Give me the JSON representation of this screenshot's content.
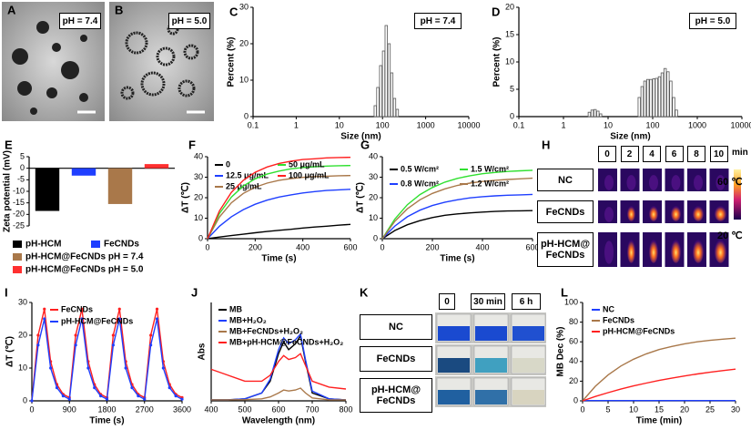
{
  "images": [
    {
      "panel": "A",
      "label": "pH = 7.4"
    },
    {
      "panel": "B",
      "label": "pH = 5.0"
    }
  ],
  "thermal": {
    "panel": "H",
    "times": [
      "0",
      "2",
      "4",
      "6",
      "8",
      "10"
    ],
    "unit": "min",
    "rows": [
      "NC",
      "FeCNDs",
      "pH-HCM@ FeCNDs"
    ],
    "scale_max": "60 ℃",
    "scale_min": "20 ℃"
  },
  "vials": {
    "panel": "K",
    "times": [
      "0",
      "30 min",
      "6 h"
    ],
    "rows": [
      "NC",
      "FeCNDs",
      "pH-HCM@ FeCNDs"
    ]
  },
  "chart_data": [
    {
      "type": "bar",
      "panel": "C",
      "annotation": "pH = 7.4",
      "xlabel": "Size (nm)",
      "ylabel": "Percent (%)",
      "xlog": true,
      "color": "#555555",
      "x": [
        68,
        78,
        91,
        106,
        122,
        142,
        164,
        190,
        220
      ],
      "values": [
        3,
        8,
        14,
        18,
        25,
        20,
        12,
        5,
        2
      ],
      "xlim": [
        0.1,
        10000
      ],
      "xticks": [
        0.1,
        1,
        10,
        100,
        1000,
        10000
      ],
      "ylim": [
        0,
        30
      ],
      "yticks": [
        0,
        10,
        20,
        30
      ]
    },
    {
      "type": "bar",
      "panel": "D",
      "annotation": "pH = 5.0",
      "xlabel": "Size (nm)",
      "ylabel": "Percent (%)",
      "xlog": true,
      "color": "#555555",
      "x": [
        3.8,
        4.4,
        5.1,
        5.9,
        6.8,
        50,
        58,
        67,
        78,
        91,
        106,
        122,
        142,
        164,
        190,
        220,
        255,
        295,
        340
      ],
      "values": [
        0.8,
        1.2,
        1.3,
        1.0,
        0.5,
        3.5,
        5.5,
        6.5,
        6.8,
        6.8,
        6.9,
        7.0,
        7.3,
        8.0,
        8.8,
        8.2,
        6.5,
        3.5,
        1.2
      ],
      "xlim": [
        0.1,
        10000
      ],
      "xticks": [
        0.1,
        1,
        10,
        100,
        1000,
        10000
      ],
      "ylim": [
        0,
        20
      ],
      "yticks": [
        0,
        5,
        10,
        15,
        20
      ]
    },
    {
      "type": "bar",
      "panel": "E",
      "ylabel": "Zeta potential (mV)",
      "categories": [
        "pH-HCM",
        "FeCNDs",
        "pH-HCM@FeCNDs pH = 7.4",
        "pH-HCM@FeCNDs pH = 5.0"
      ],
      "values": [
        -18.5,
        -3.2,
        -15.5,
        1.8
      ],
      "colors": [
        "#000000",
        "#1f3fff",
        "#a9784a",
        "#ff3030"
      ],
      "ylim": [
        -25,
        5
      ],
      "yticks": [
        -25,
        -20,
        -15,
        -10,
        -5,
        0,
        5
      ]
    },
    {
      "type": "line",
      "panel": "F",
      "xlabel": "Time (s)",
      "ylabel": "ΔT (℃)",
      "x": [
        0,
        50,
        100,
        150,
        200,
        250,
        300,
        350,
        400,
        450,
        500,
        550,
        600
      ],
      "series": [
        {
          "name": "0",
          "color": "#000000",
          "values": [
            0,
            0.8,
            1.5,
            2.2,
            2.9,
            3.5,
            4.1,
            4.6,
            5.2,
            5.7,
            6.1,
            6.6,
            7.0
          ]
        },
        {
          "name": "12.5 μg/mL",
          "color": "#1f3fff",
          "values": [
            0,
            6.1,
            10.7,
            14.2,
            16.8,
            18.8,
            20.3,
            21.4,
            22.3,
            23.0,
            23.5,
            23.8,
            24.1
          ]
        },
        {
          "name": "25 μg/mL",
          "color": "#a9784a",
          "values": [
            0,
            10.6,
            17.5,
            22.1,
            25.1,
            27.1,
            28.5,
            29.3,
            29.9,
            30.3,
            30.5,
            30.7,
            30.8
          ]
        },
        {
          "name": "50 μg/mL",
          "color": "#30e030",
          "values": [
            0,
            12.3,
            20.3,
            25.7,
            29.2,
            31.5,
            33.0,
            34.1,
            34.7,
            35.1,
            35.4,
            35.6,
            35.7
          ]
        },
        {
          "name": "100 μg/mL",
          "color": "#ff2020",
          "values": [
            0,
            13.6,
            22.6,
            28.5,
            32.4,
            35.0,
            36.7,
            37.8,
            38.6,
            39.0,
            39.4,
            39.6,
            39.7
          ]
        }
      ],
      "xlim": [
        0,
        600
      ],
      "xticks": [
        0,
        200,
        400,
        600
      ],
      "ylim": [
        0,
        40
      ],
      "yticks": [
        0,
        10,
        20,
        30,
        40
      ]
    },
    {
      "type": "line",
      "panel": "G",
      "xlabel": "Time (s)",
      "ylabel": "ΔT (℃)",
      "x": [
        0,
        50,
        100,
        150,
        200,
        250,
        300,
        350,
        400,
        450,
        500,
        550,
        600
      ],
      "series": [
        {
          "name": "0.5 W/cm²",
          "color": "#000000",
          "values": [
            0,
            4.0,
            6.8,
            8.8,
            10.3,
            11.4,
            12.1,
            12.6,
            13.0,
            13.3,
            13.5,
            13.6,
            13.7
          ]
        },
        {
          "name": "0.8 W/cm²",
          "color": "#1f3fff",
          "values": [
            0,
            6.2,
            10.7,
            13.9,
            16.2,
            17.8,
            19.0,
            19.9,
            20.5,
            20.9,
            21.2,
            21.4,
            21.6
          ]
        },
        {
          "name": "1.5 W/cm²",
          "color": "#30e030",
          "values": [
            0,
            9.6,
            16.6,
            21.5,
            25.0,
            27.6,
            29.4,
            30.7,
            31.7,
            32.3,
            32.8,
            33.1,
            33.4
          ]
        },
        {
          "name": "1.2 W/cm²",
          "color": "#a9784a",
          "values": [
            0,
            8.5,
            14.6,
            19.0,
            22.1,
            24.3,
            26.0,
            27.1,
            27.9,
            28.5,
            28.9,
            29.2,
            29.5
          ]
        }
      ],
      "xlim": [
        0,
        600
      ],
      "xticks": [
        0,
        200,
        400,
        600
      ],
      "ylim": [
        0,
        40
      ],
      "yticks": [
        0,
        10,
        20,
        30,
        40
      ]
    },
    {
      "type": "line",
      "panel": "I",
      "xlabel": "Time (s)",
      "ylabel": "ΔT (℃)",
      "markers": true,
      "x": [
        0,
        150,
        300,
        450,
        600,
        750,
        900,
        1050,
        1200,
        1350,
        1500,
        1650,
        1800,
        1950,
        2100,
        2250,
        2400,
        2550,
        2700,
        2850,
        3000,
        3150,
        3300,
        3450,
        3600
      ],
      "series": [
        {
          "name": "FeCNDs",
          "color": "#ff2020",
          "values": [
            0,
            20,
            28,
            12,
            5,
            2,
            1,
            20,
            28,
            12,
            5,
            2,
            1,
            20,
            28,
            12,
            5,
            2,
            1,
            20,
            28,
            12,
            5,
            2,
            1
          ]
        },
        {
          "name": "pH-HCM@FeCNDs",
          "color": "#1f3fff",
          "values": [
            0,
            17,
            25,
            10,
            4,
            1.5,
            0.5,
            17,
            25,
            10,
            4,
            1.5,
            0.5,
            17,
            25,
            10,
            4,
            1.5,
            0.5,
            17,
            25,
            10,
            4,
            1.5,
            0.5
          ]
        }
      ],
      "xlim": [
        0,
        3600
      ],
      "xticks": [
        0,
        900,
        1800,
        2700,
        3600
      ],
      "ylim": [
        0,
        30
      ],
      "yticks": [
        0,
        10,
        20,
        30
      ]
    },
    {
      "type": "line",
      "panel": "J",
      "xlabel": "Wavelength (nm)",
      "ylabel": "Abs",
      "x": [
        400,
        450,
        500,
        550,
        575,
        600,
        615,
        630,
        650,
        665,
        680,
        700,
        750,
        800
      ],
      "series": [
        {
          "name": "MB",
          "color": "#000000",
          "values": [
            0.05,
            0.05,
            0.1,
            0.4,
            1.0,
            2.4,
            3.0,
            2.6,
            2.9,
            3.3,
            2.0,
            0.4,
            0.1,
            0.05
          ]
        },
        {
          "name": "MB+H₂O₂",
          "color": "#1f3fff",
          "values": [
            0.05,
            0.05,
            0.1,
            0.4,
            1.1,
            2.6,
            3.2,
            2.9,
            3.1,
            3.4,
            2.1,
            0.5,
            0.1,
            0.05
          ]
        },
        {
          "name": "MB+FeCNDs+H₂O₂",
          "color": "#a9784a",
          "values": [
            0.05,
            0.05,
            0.06,
            0.1,
            0.2,
            0.4,
            0.55,
            0.5,
            0.55,
            0.65,
            0.4,
            0.15,
            0.05,
            0.05
          ]
        },
        {
          "name": "MB+pH-HCM@FeCNDs+H₂O₂",
          "color": "#ff2020",
          "values": [
            1.6,
            1.3,
            1.0,
            1.0,
            1.3,
            2.0,
            2.3,
            2.1,
            2.2,
            2.4,
            1.8,
            1.0,
            0.7,
            0.6
          ]
        }
      ],
      "xlim": [
        400,
        800
      ],
      "xticks": [
        400,
        500,
        600,
        700,
        800
      ],
      "ylim": [
        0,
        5
      ]
    },
    {
      "type": "line",
      "panel": "L",
      "xlabel": "Time (min)",
      "ylabel": "MB Dec (%)",
      "x": [
        0,
        2.5,
        5,
        7.5,
        10,
        12.5,
        15,
        17.5,
        20,
        22.5,
        25,
        27.5,
        30
      ],
      "series": [
        {
          "name": "NC",
          "color": "#1f3fff",
          "values": [
            0.3,
            0.3,
            0.3,
            0.3,
            0.3,
            0.3,
            0.3,
            0.3,
            0.3,
            0.3,
            0.3,
            0.3,
            0.3
          ]
        },
        {
          "name": "FeCNDs",
          "color": "#a9784a",
          "values": [
            0,
            14.8,
            26.3,
            35.4,
            42.3,
            47.8,
            52.1,
            55.3,
            58.0,
            60.0,
            61.5,
            62.7,
            63.7
          ]
        },
        {
          "name": "pH-HCM@FeCNDs",
          "color": "#ff2020",
          "values": [
            0,
            4.4,
            8.3,
            11.9,
            15.2,
            18.1,
            20.7,
            23.1,
            25.3,
            27.3,
            29.1,
            30.7,
            32.2
          ]
        }
      ],
      "xlim": [
        0,
        30
      ],
      "xticks": [
        0,
        5,
        10,
        15,
        20,
        25,
        30
      ],
      "ylim": [
        0,
        100
      ],
      "yticks": [
        0,
        20,
        40,
        60,
        80,
        100
      ]
    }
  ]
}
